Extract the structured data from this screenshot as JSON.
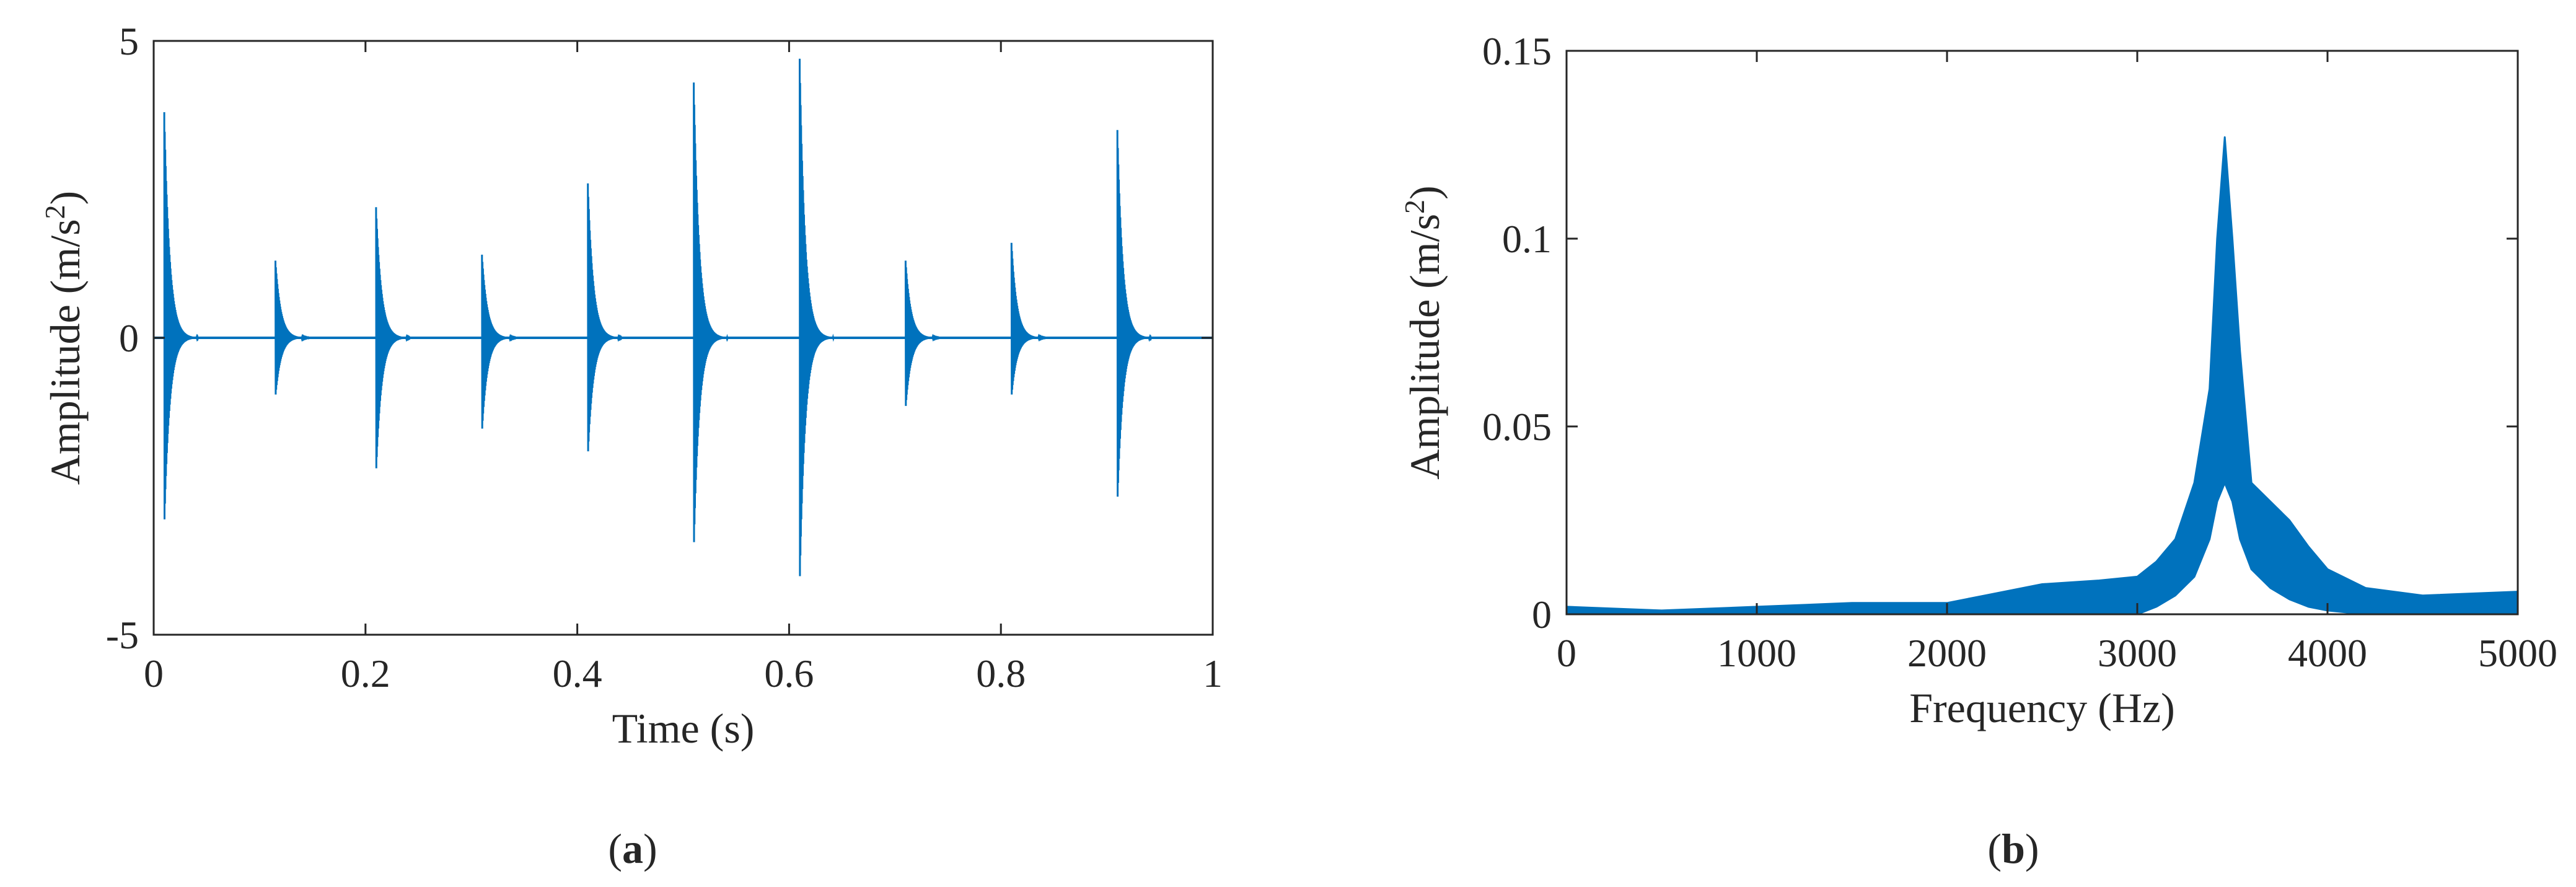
{
  "chart_data": [
    {
      "type": "line",
      "panel_label": "a",
      "color": "#0072BD",
      "xlabel": "Time (s)",
      "ylabel": "Amplitude (m/s",
      "ylabel_sup": "2",
      "ylabel_close": ")",
      "xlim": [
        0,
        1
      ],
      "ylim": [
        -5,
        5
      ],
      "xticks": [
        0,
        0.2,
        0.4,
        0.6,
        0.8,
        1
      ],
      "xtick_labels": [
        "0",
        "0.2",
        "0.4",
        "0.6",
        "0.8",
        "1"
      ],
      "yticks": [
        -5,
        0,
        5
      ],
      "ytick_labels": [
        "-5",
        "0",
        "5"
      ],
      "grid": false,
      "impulses": [
        {
          "t": 0.01,
          "peak": 3.8,
          "trough": -3.2
        },
        {
          "t": 0.115,
          "peak": 1.3,
          "trough": -1.0
        },
        {
          "t": 0.21,
          "peak": 2.2,
          "trough": -2.3
        },
        {
          "t": 0.31,
          "peak": 1.4,
          "trough": -1.6
        },
        {
          "t": 0.41,
          "peak": 2.6,
          "trough": -2.0
        },
        {
          "t": 0.51,
          "peak": 4.3,
          "trough": -3.6
        },
        {
          "t": 0.61,
          "peak": 4.7,
          "trough": -4.2
        },
        {
          "t": 0.71,
          "peak": 1.3,
          "trough": -1.2
        },
        {
          "t": 0.81,
          "peak": 1.6,
          "trough": -1.0
        },
        {
          "t": 0.91,
          "peak": 3.5,
          "trough": -2.8
        }
      ]
    },
    {
      "type": "area",
      "panel_label": "b",
      "color": "#0072BD",
      "xlabel": "Frequency (Hz)",
      "ylabel": "Amplitude (m/s",
      "ylabel_sup": "2",
      "ylabel_close": ")",
      "xlim": [
        0,
        5000
      ],
      "ylim": [
        0,
        0.15
      ],
      "xticks": [
        0,
        1000,
        2000,
        3000,
        4000,
        5000
      ],
      "xtick_labels": [
        "0",
        "1000",
        "2000",
        "3000",
        "4000",
        "5000"
      ],
      "yticks": [
        0,
        0.05,
        0.1,
        0.15
      ],
      "ytick_labels": [
        "0",
        "0.05",
        "0.1",
        "0.15"
      ],
      "grid": false,
      "envelope": {
        "x": [
          0,
          500,
          1000,
          1500,
          2000,
          2200,
          2500,
          2800,
          3000,
          3100,
          3200,
          3300,
          3380,
          3420,
          3460,
          3500,
          3540,
          3600,
          3700,
          3800,
          3900,
          4000,
          4200,
          4500,
          5000
        ],
        "upper": [
          0.002,
          0.001,
          0.002,
          0.003,
          0.003,
          0.005,
          0.008,
          0.009,
          0.01,
          0.014,
          0.02,
          0.035,
          0.06,
          0.1,
          0.127,
          0.1,
          0.07,
          0.035,
          0.03,
          0.025,
          0.018,
          0.012,
          0.007,
          0.005,
          0.006
        ],
        "lower": [
          0,
          0,
          0,
          0,
          0,
          0,
          0,
          0,
          0,
          0.002,
          0.005,
          0.01,
          0.02,
          0.03,
          0.035,
          0.03,
          0.02,
          0.012,
          0.007,
          0.004,
          0.002,
          0.001,
          0,
          0,
          0
        ]
      }
    }
  ]
}
